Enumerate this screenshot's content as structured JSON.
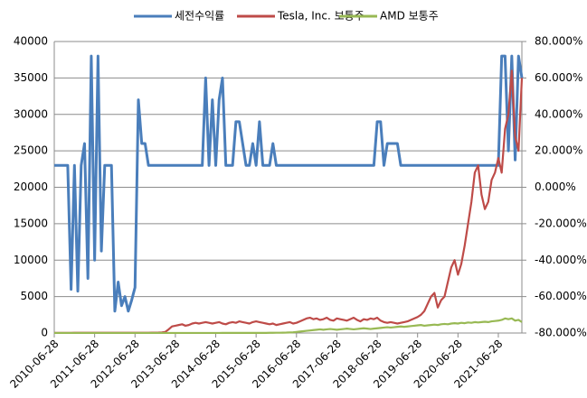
{
  "chart_data": {
    "type": "line",
    "categories": [
      "2010-06-28",
      null,
      null,
      null,
      null,
      null,
      null,
      null,
      null,
      null,
      null,
      null,
      "2011-06-28",
      null,
      null,
      null,
      null,
      null,
      null,
      null,
      null,
      null,
      null,
      null,
      "2012-06-28",
      null,
      null,
      null,
      null,
      null,
      null,
      null,
      null,
      null,
      null,
      null,
      "2013-06-28",
      null,
      null,
      null,
      null,
      null,
      null,
      null,
      null,
      null,
      null,
      null,
      "2014-06-28",
      null,
      null,
      null,
      null,
      null,
      null,
      null,
      null,
      null,
      null,
      null,
      "2015-06-28",
      null,
      null,
      null,
      null,
      null,
      null,
      null,
      null,
      null,
      null,
      null,
      "2016-06-28",
      null,
      null,
      null,
      null,
      null,
      null,
      null,
      null,
      null,
      null,
      null,
      "2017-06-28",
      null,
      null,
      null,
      null,
      null,
      null,
      null,
      null,
      null,
      null,
      null,
      "2018-06-28",
      null,
      null,
      null,
      null,
      null,
      null,
      null,
      null,
      null,
      null,
      null,
      "2019-06-28",
      null,
      null,
      null,
      null,
      null,
      null,
      null,
      null,
      null,
      null,
      null,
      "2020-06-28",
      null,
      null,
      null,
      null,
      null,
      null,
      null,
      null,
      null,
      null,
      null,
      "2021-06-28",
      null,
      null,
      null,
      null,
      null,
      null,
      null
    ],
    "series": [
      {
        "name": "세전수익률",
        "color": "#4a7ebb",
        "axis": "y2",
        "values": [
          12,
          12,
          12,
          12,
          12,
          -56,
          12,
          -57,
          12,
          24,
          -50,
          72,
          -40,
          72,
          -35,
          12,
          12,
          12,
          -68,
          -52,
          -65,
          -60,
          -68,
          -62,
          -55,
          48,
          24,
          24,
          12,
          12,
          12,
          12,
          12,
          12,
          12,
          12,
          12,
          12,
          12,
          12,
          12,
          12,
          12,
          12,
          12,
          60,
          12,
          48,
          12,
          48,
          60,
          12,
          12,
          12,
          36,
          36,
          24,
          12,
          12,
          24,
          12,
          36,
          12,
          12,
          12,
          24,
          12,
          12,
          12,
          12,
          12,
          12,
          12,
          12,
          12,
          12,
          12,
          12,
          12,
          12,
          12,
          12,
          12,
          12,
          12,
          12,
          12,
          12,
          12,
          12,
          12,
          12,
          12,
          12,
          12,
          12,
          36,
          36,
          12,
          24,
          24,
          24,
          24,
          12,
          12,
          12,
          12,
          12,
          12,
          12,
          12,
          12,
          12,
          12,
          12,
          12,
          12,
          12,
          12,
          12,
          12,
          12,
          12,
          12,
          12,
          12,
          12,
          12,
          12,
          12,
          12,
          12,
          12,
          72,
          72,
          20,
          72,
          15,
          72,
          60
        ]
      },
      {
        "name": "Tesla, Inc. 보통주",
        "color": "#be4b48",
        "values": [
          20,
          20,
          20,
          25,
          25,
          25,
          30,
          30,
          30,
          30,
          30,
          30,
          30,
          30,
          30,
          30,
          30,
          30,
          30,
          30,
          30,
          30,
          30,
          30,
          30,
          30,
          35,
          40,
          40,
          45,
          50,
          60,
          80,
          150,
          500,
          900,
          1000,
          1100,
          1200,
          1000,
          1100,
          1300,
          1400,
          1300,
          1400,
          1500,
          1400,
          1300,
          1400,
          1500,
          1300,
          1200,
          1400,
          1500,
          1400,
          1600,
          1500,
          1400,
          1300,
          1500,
          1600,
          1500,
          1400,
          1300,
          1200,
          1300,
          1100,
          1200,
          1300,
          1400,
          1500,
          1300,
          1400,
          1600,
          1800,
          2000,
          2100,
          1900,
          2000,
          1800,
          1900,
          2100,
          1800,
          1700,
          2000,
          1900,
          1800,
          1700,
          1900,
          2100,
          1800,
          1600,
          1900,
          1800,
          2000,
          1900,
          2100,
          1700,
          1500,
          1400,
          1500,
          1400,
          1300,
          1400,
          1500,
          1600,
          1800,
          2000,
          2200,
          2500,
          3000,
          4000,
          5000,
          5500,
          3500,
          4500,
          5000,
          7000,
          9000,
          10000,
          8000,
          9500,
          12000,
          15000,
          18000,
          22000,
          23000,
          19000,
          17000,
          18000,
          21000,
          22000,
          24000,
          22000,
          28000,
          30000,
          36000,
          27000,
          25000,
          35000
        ]
      },
      {
        "name": "AMD 보통주",
        "color": "#98b954",
        "values": [
          10,
          10,
          10,
          10,
          10,
          10,
          10,
          10,
          10,
          10,
          10,
          10,
          10,
          10,
          10,
          10,
          10,
          10,
          10,
          10,
          10,
          10,
          10,
          10,
          10,
          10,
          10,
          10,
          10,
          10,
          10,
          10,
          10,
          10,
          10,
          10,
          10,
          10,
          10,
          10,
          10,
          10,
          10,
          10,
          10,
          10,
          10,
          10,
          10,
          10,
          20,
          20,
          20,
          20,
          20,
          20,
          20,
          20,
          20,
          20,
          20,
          20,
          20,
          20,
          30,
          30,
          40,
          40,
          50,
          60,
          80,
          100,
          150,
          200,
          250,
          300,
          350,
          400,
          450,
          500,
          450,
          500,
          550,
          500,
          450,
          500,
          550,
          600,
          550,
          500,
          550,
          600,
          650,
          600,
          550,
          600,
          650,
          700,
          750,
          800,
          750,
          800,
          850,
          900,
          850,
          900,
          950,
          1000,
          1050,
          1100,
          1000,
          1050,
          1100,
          1150,
          1100,
          1200,
          1250,
          1200,
          1300,
          1350,
          1300,
          1400,
          1350,
          1450,
          1400,
          1500,
          1450,
          1500,
          1550,
          1500,
          1600,
          1650,
          1700,
          1800,
          2000,
          1900,
          2000,
          1700,
          1800,
          1500
        ]
      }
    ],
    "ylim": [
      0,
      40000
    ],
    "yticks": [
      0,
      5000,
      10000,
      15000,
      20000,
      25000,
      30000,
      35000,
      40000
    ],
    "y2lim": [
      -80,
      80
    ],
    "y2ticks": [
      {
        "value": -80,
        "label": "-80.000%"
      },
      {
        "value": -60,
        "label": "-60.000%"
      },
      {
        "value": -40,
        "label": "-40.000%"
      },
      {
        "value": -20,
        "label": "-20.000%"
      },
      {
        "value": 0,
        "label": "0.000%"
      },
      {
        "value": 20,
        "label": "20.000%"
      },
      {
        "value": 40,
        "label": "40.000%"
      },
      {
        "value": 60,
        "label": "60.000%"
      },
      {
        "value": 80,
        "label": "80.000%"
      }
    ],
    "grid": true,
    "legend": "top"
  }
}
